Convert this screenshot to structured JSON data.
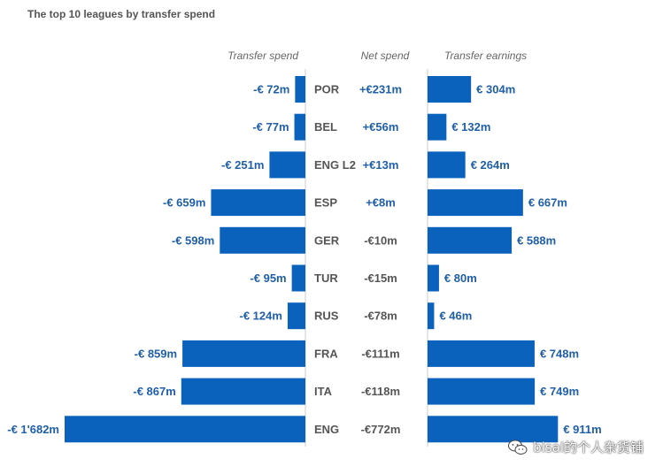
{
  "chart_data": {
    "type": "bar",
    "title": "The top 10 leagues by transfer spend",
    "column_headers": {
      "spend": "Transfer spend",
      "net": "Net spend",
      "earnings": "Transfer earnings"
    },
    "categories": [
      "POR",
      "BEL",
      "ENG L2",
      "ESP",
      "GER",
      "TUR",
      "RUS",
      "FRA",
      "ITA",
      "ENG"
    ],
    "series": [
      {
        "name": "Transfer spend",
        "values": [
          72,
          77,
          251,
          659,
          598,
          95,
          124,
          859,
          867,
          1682
        ],
        "labels": [
          "-€ 72m",
          "-€ 77m",
          "-€ 251m",
          "-€ 659m",
          "-€ 598m",
          "-€ 95m",
          "-€ 124m",
          "-€ 859m",
          "-€ 867m",
          "-€ 1'682m"
        ]
      },
      {
        "name": "Net spend",
        "values": [
          231,
          56,
          13,
          8,
          -10,
          -15,
          -78,
          -111,
          -118,
          -772
        ],
        "labels": [
          "+€231m",
          "+€56m",
          "+€13m",
          "+€8m",
          "-€10m",
          "-€15m",
          "-€78m",
          "-€111m",
          "-€118m",
          "-€772m"
        ]
      },
      {
        "name": "Transfer earnings",
        "values": [
          304,
          132,
          264,
          667,
          588,
          80,
          46,
          748,
          749,
          911
        ],
        "labels": [
          "€ 304m",
          "€ 132m",
          "€ 264m",
          "€ 667m",
          "€ 588m",
          "€ 80m",
          "€ 46m",
          "€ 748m",
          "€ 749m",
          "€ 911m"
        ]
      }
    ],
    "xlabel": "",
    "ylabel": ""
  },
  "watermark": {
    "text": "bisal的个人杂货铺",
    "icon": "wechat-icon"
  },
  "colors": {
    "bar": "#0b62bd",
    "positive_net": "#1f5fa8",
    "negative_net": "#555555",
    "axis": "#cccccc"
  }
}
